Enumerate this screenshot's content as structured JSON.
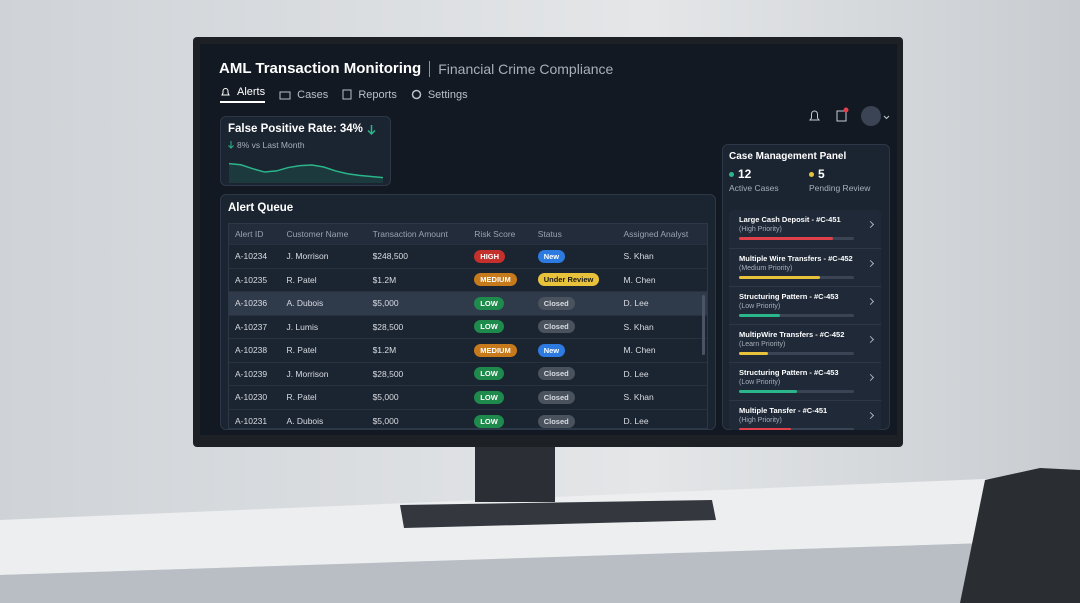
{
  "header": {
    "title": "AML Transaction Monitoring",
    "subtitle": "Financial Crime Compliance"
  },
  "nav": [
    "Alerts",
    "Cases",
    "Reports",
    "Settings"
  ],
  "kpi": {
    "title": "False Positive Rate: 34%",
    "change": "8% vs Last Month",
    "sparkline": {
      "values": [
        62,
        58,
        44,
        32,
        36,
        48,
        55,
        57,
        50,
        36,
        26,
        20,
        16,
        12
      ],
      "ylim": [
        0,
        100
      ],
      "color": "#2bb58a"
    }
  },
  "alert_queue": {
    "title": "Alert Queue",
    "columns": [
      "Alert ID",
      "Customer Name",
      "Transaction Amount",
      "Risk Score",
      "Status",
      "Assigned Analyst"
    ],
    "rows": [
      [
        "A-10234",
        "J. Morrison",
        "$248,500",
        "HIGH",
        "New",
        "S. Khan"
      ],
      [
        "A-10235",
        "R. Patel",
        "$1.2M",
        "MEDIUM",
        "Under Review",
        "M. Chen"
      ],
      [
        "A-10236",
        "A. Dubois",
        "$5,000",
        "LOW",
        "Closed",
        "D. Lee"
      ],
      [
        "A-10237",
        "J. Lumis",
        "$28,500",
        "LOW",
        "Closed",
        "S. Khan"
      ],
      [
        "A-10238",
        "R. Patel",
        "$1.2M",
        "MEDIUM",
        "New",
        "M. Chen"
      ],
      [
        "A-10239",
        "J. Morrison",
        "$28,500",
        "LOW",
        "Closed",
        "D. Lee"
      ],
      [
        "A-10230",
        "R. Patel",
        "$5,000",
        "LOW",
        "Closed",
        "S. Khan"
      ],
      [
        "A-10231",
        "A. Dubois",
        "$5,000",
        "LOW",
        "Closed",
        "D. Lee"
      ]
    ],
    "badge_styles": {
      "HIGH": [
        "#c4302b",
        "#ffffff"
      ],
      "MEDIUM": [
        "#c77a1c",
        "#ffffff"
      ],
      "LOW": [
        "#1e8a4c",
        "#ffffff"
      ],
      "New": [
        "#2d7ae0",
        "#ffffff"
      ],
      "Under Review": [
        "#e9c23b",
        "#1a1a1a"
      ],
      "Closed": [
        "#4a525e",
        "#d8dce2"
      ]
    }
  },
  "case_panel": {
    "title": "Case Management Panel",
    "stats": [
      {
        "value": "12",
        "label": "Active Cases",
        "color": "#2bb58a"
      },
      {
        "value": "5",
        "label": "Pending Review",
        "color": "#e9c23b"
      }
    ],
    "items": [
      {
        "title": "Large Cash Deposit - #C-451",
        "priority": "(High Priority)",
        "progress": 82,
        "color": "#e0404a"
      },
      {
        "title": "Multiple Wire Transfers - #C-452",
        "priority": "(Medium Priority)",
        "progress": 70,
        "color": "#e9c23b"
      },
      {
        "title": "Structuring Pattern - #C-453",
        "priority": "(Low Priority)",
        "progress": 36,
        "color": "#2bb58a"
      },
      {
        "title": "MultipWire Transfers - #C-452",
        "priority": "(Learn Priority)",
        "progress": 25,
        "color": "#e9c23b"
      },
      {
        "title": "Structuring Pattern - #C-453",
        "priority": "(Low Priority)",
        "progress": 50,
        "color": "#2bb58a"
      },
      {
        "title": "Multiple Tansfer - #C-451",
        "priority": "(High Priority)",
        "progress": 45,
        "color": "#e0404a"
      }
    ]
  }
}
